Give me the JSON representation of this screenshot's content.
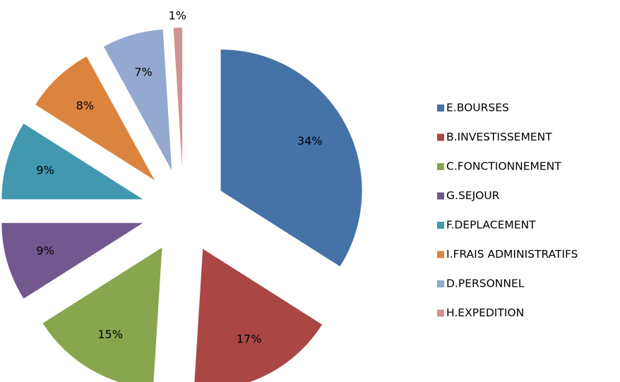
{
  "chart_data": {
    "type": "pie",
    "categories": [
      "E.BOURSES",
      "B.INVESTISSEMENT",
      "C.FONCTIONNEMENT",
      "G.SEJOUR",
      "F.DEPLACEMENT",
      "I.FRAIS ADMINISTRATIFS",
      "D.PERSONNEL",
      "H.EXPEDITION"
    ],
    "values": [
      34,
      17,
      15,
      9,
      9,
      8,
      7,
      1
    ],
    "value_labels": [
      "34%",
      "17%",
      "15%",
      "9%",
      "9%",
      "8%",
      "7%",
      "1%"
    ],
    "colors": [
      "#4572a7",
      "#aa4643",
      "#89a54e",
      "#71588f",
      "#4198af",
      "#db843d",
      "#93a9cf",
      "#d19392"
    ],
    "legend": "right"
  }
}
